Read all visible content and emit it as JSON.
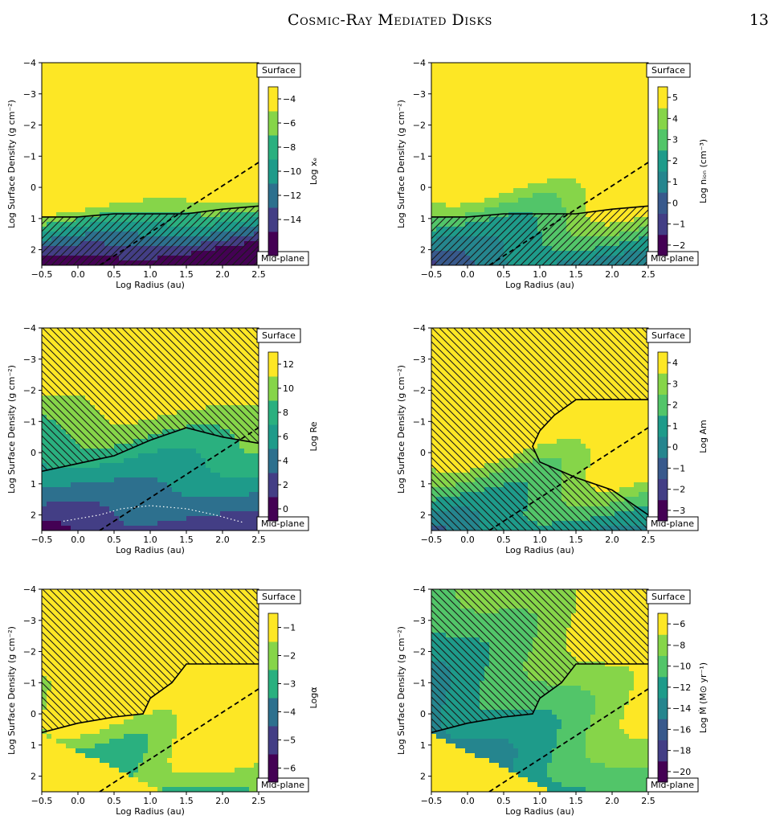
{
  "header": {
    "title": "Cosmic-Ray Mediated Disks",
    "page_number": "13"
  },
  "palette": [
    "#440154",
    "#482173",
    "#433e85",
    "#38598c",
    "#2d708e",
    "#25858e",
    "#1e9b8a",
    "#2ab07f",
    "#52c569",
    "#86d549",
    "#c2df23",
    "#fde725"
  ],
  "chart_data": [
    {
      "id": "xe",
      "type": "heatmap",
      "xlabel": "Log Radius (au)",
      "ylabel": "Log Surface Density (g cm⁻²)",
      "x_ticks": [
        "−0.5",
        "0.0",
        "0.5",
        "1.0",
        "1.5",
        "2.0",
        "2.5"
      ],
      "y_ticks": [
        "−4",
        "−3",
        "−2",
        "−1",
        "0",
        "1",
        "2"
      ],
      "xlim": [
        -0.5,
        2.5
      ],
      "ylim": [
        -4,
        2.5
      ],
      "surface_label": "Surface",
      "midplane_label": "Mid-plane",
      "colorbar_label": "Log xₑ",
      "colorbar_ticks": [
        "−4",
        "−6",
        "−8",
        "−10",
        "−12",
        "−14"
      ],
      "colorbar_range": [
        -15,
        -4
      ],
      "n_levels": 7,
      "field": {
        "base": -2.0,
        "a1": -5.0,
        "a2": -0.8,
        "b": 0.0,
        "s": 0.1,
        "w": 0.8,
        "min": -15,
        "max": -4,
        "cap": -2.1,
        "capval": -4
      },
      "hatch_region": "below_boundary",
      "hatch_dir": "fwd",
      "boundary": [
        [
          -0.5,
          0.95
        ],
        [
          0.0,
          0.95
        ],
        [
          0.5,
          0.85
        ],
        [
          1.0,
          0.85
        ],
        [
          1.5,
          0.85
        ],
        [
          2.0,
          0.7
        ],
        [
          2.5,
          0.6
        ]
      ]
    },
    {
      "id": "nion",
      "type": "heatmap",
      "xlabel": "Log Radius (au)",
      "ylabel": "Log Surface Density (g cm⁻²)",
      "x_ticks": [
        "−0.5",
        "0.0",
        "0.5",
        "1.0",
        "1.5",
        "2.0",
        "2.5"
      ],
      "y_ticks": [
        "−4",
        "−3",
        "−2",
        "−1",
        "0",
        "1",
        "2"
      ],
      "xlim": [
        -0.5,
        2.5
      ],
      "ylim": [
        -4,
        2.5
      ],
      "surface_label": "Surface",
      "midplane_label": "Mid-plane",
      "colorbar_label": "Log nᵢₒₙ (cm⁻³)",
      "colorbar_ticks": [
        "5",
        "4",
        "3",
        "2",
        "1",
        "0",
        "−1",
        "−2"
      ],
      "colorbar_range": [
        -2.3,
        5.5
      ],
      "n_levels": 8,
      "field": {
        "base": 4.6,
        "a1": -1.6,
        "a2": 0.4,
        "b": 0.25,
        "s": 1.3,
        "w": 0.9,
        "min": -2.3,
        "max": 5.5
      },
      "hatch_region": "below_boundary",
      "hatch_dir": "fwd",
      "boundary": [
        [
          -0.5,
          0.95
        ],
        [
          0.0,
          0.95
        ],
        [
          0.5,
          0.85
        ],
        [
          1.0,
          0.85
        ],
        [
          1.5,
          0.85
        ],
        [
          2.0,
          0.7
        ],
        [
          2.5,
          0.6
        ]
      ]
    },
    {
      "id": "re",
      "type": "heatmap",
      "xlabel": "Log Radius (au)",
      "ylabel": "Log Surface Density (g cm⁻²)",
      "x_ticks": [
        "−0.5",
        "0.0",
        "0.5",
        "1.0",
        "1.5",
        "2.0",
        "2.5"
      ],
      "y_ticks": [
        "−4",
        "−3",
        "−2",
        "−1",
        "0",
        "1",
        "2"
      ],
      "xlim": [
        -0.5,
        2.5
      ],
      "ylim": [
        -4,
        2.5
      ],
      "surface_label": "Surface",
      "midplane_label": "Mid-plane",
      "colorbar_label": "Log Re",
      "colorbar_ticks": [
        "12",
        "10",
        "8",
        "6",
        "4",
        "2",
        "0"
      ],
      "colorbar_range": [
        -1,
        13
      ],
      "n_levels": 7,
      "field": {
        "base": 7.5,
        "a1": -2.4,
        "a2": 0.2,
        "b": 0.3,
        "s": 0.2,
        "w": 0.9,
        "min": -1,
        "max": 13
      },
      "hatch_region": "above_boundary",
      "hatch_dir": "back",
      "boundary": [
        [
          -0.5,
          0.6
        ],
        [
          0.5,
          0.1
        ],
        [
          1.0,
          -0.4
        ],
        [
          1.5,
          -0.8
        ],
        [
          2.0,
          -0.5
        ],
        [
          2.5,
          -0.3
        ]
      ],
      "dotted": [
        [
          -0.2,
          2.2
        ],
        [
          0.3,
          2.0
        ],
        [
          0.6,
          1.8
        ],
        [
          1.0,
          1.7
        ],
        [
          1.5,
          1.8
        ],
        [
          1.9,
          2.0
        ],
        [
          2.3,
          2.25
        ]
      ]
    },
    {
      "id": "am",
      "type": "heatmap",
      "xlabel": "Log Radius (au)",
      "ylabel": "Log Surface Density (g cm⁻²)",
      "x_ticks": [
        "−0.5",
        "0.0",
        "0.5",
        "1.0",
        "1.5",
        "2.0",
        "2.5"
      ],
      "y_ticks": [
        "−4",
        "−3",
        "−2",
        "−1",
        "0",
        "1",
        "2"
      ],
      "xlim": [
        -0.5,
        2.5
      ],
      "ylim": [
        -4,
        2.5
      ],
      "surface_label": "Surface",
      "midplane_label": "Mid-plane",
      "colorbar_label": "Log Am",
      "colorbar_ticks": [
        "4",
        "3",
        "2",
        "1",
        "0",
        "−1",
        "−2",
        "−3"
      ],
      "colorbar_range": [
        -3.5,
        4.5
      ],
      "n_levels": 8,
      "field": {
        "base": 3.5,
        "a1": -1.3,
        "a2": 0.3,
        "b": 0.25,
        "s": 1.3,
        "w": 0.9,
        "min": -3.5,
        "max": 4.5
      },
      "hatch_region": "left_of_boundary",
      "hatch_dir": "back",
      "boundary": [
        [
          2.5,
          -1.7
        ],
        [
          2.0,
          -1.7
        ],
        [
          1.5,
          -1.7
        ],
        [
          1.2,
          -1.2
        ],
        [
          1.0,
          -0.7
        ],
        [
          0.9,
          -0.2
        ],
        [
          1.0,
          0.3
        ],
        [
          1.5,
          0.8
        ],
        [
          2.0,
          1.2
        ],
        [
          2.5,
          2.0
        ]
      ]
    },
    {
      "id": "alpha",
      "type": "heatmap",
      "xlabel": "Log Radius (au)",
      "ylabel": "Log Surface Density (g cm⁻²)",
      "x_ticks": [
        "−0.5",
        "0.0",
        "0.5",
        "1.0",
        "1.5",
        "2.0",
        "2.5"
      ],
      "y_ticks": [
        "−4",
        "−3",
        "−2",
        "−1",
        "0",
        "1",
        "2"
      ],
      "xlim": [
        -0.5,
        2.5
      ],
      "ylim": [
        -4,
        2.5
      ],
      "surface_label": "Surface",
      "midplane_label": "Mid-plane",
      "colorbar_label": "Logα",
      "colorbar_ticks": [
        "−1",
        "−2",
        "−3",
        "−4",
        "−5",
        "−6"
      ],
      "colorbar_range": [
        -6.5,
        -0.5
      ],
      "n_levels": 6,
      "field": {
        "base": -1.4,
        "a1": -1.0,
        "a2": 0.8,
        "b": 0.35,
        "s": 1.3,
        "w": 0.9,
        "min": -6.5,
        "max": -0.5,
        "diag_bright": true
      },
      "hatch_region": "upper_left",
      "hatch_dir": "back",
      "boundary": [
        [
          -0.5,
          0.6
        ],
        [
          0.0,
          0.3
        ],
        [
          0.5,
          0.1
        ],
        [
          0.9,
          0.0
        ],
        [
          1.0,
          -0.5
        ],
        [
          1.3,
          -1.0
        ],
        [
          1.5,
          -1.6
        ],
        [
          2.0,
          -1.6
        ],
        [
          2.5,
          -1.6
        ]
      ]
    },
    {
      "id": "mdot",
      "type": "heatmap",
      "xlabel": "Log Radius (au)",
      "ylabel": "Log Surface Density (g cm⁻²)",
      "x_ticks": [
        "−0.5",
        "0.0",
        "0.5",
        "1.0",
        "1.5",
        "2.0",
        "2.5"
      ],
      "y_ticks": [
        "−4",
        "−3",
        "−2",
        "−1",
        "0",
        "1",
        "2"
      ],
      "xlim": [
        -0.5,
        2.5
      ],
      "ylim": [
        -4,
        2.5
      ],
      "surface_label": "Surface",
      "midplane_label": "Mid-plane",
      "colorbar_label": "Log Ṁ (M⊙ yr⁻¹)",
      "colorbar_ticks": [
        "−6",
        "−8",
        "−10",
        "−12",
        "−14",
        "−16",
        "−18",
        "−20"
      ],
      "colorbar_range": [
        -20.5,
        -5
      ],
      "n_levels": 8,
      "field": {
        "base": -12.5,
        "a1": -0.8,
        "a2": 2.3,
        "b": 0.2,
        "s": 1.3,
        "w": 0.9,
        "min": -20.5,
        "max": -5,
        "diag_bright": true
      },
      "hatch_region": "upper_left",
      "hatch_dir": "back",
      "boundary": [
        [
          -0.5,
          0.6
        ],
        [
          0.0,
          0.3
        ],
        [
          0.5,
          0.1
        ],
        [
          0.9,
          0.0
        ],
        [
          1.0,
          -0.5
        ],
        [
          1.3,
          -1.0
        ],
        [
          1.5,
          -1.6
        ],
        [
          2.0,
          -1.6
        ],
        [
          2.5,
          -1.6
        ]
      ]
    }
  ]
}
